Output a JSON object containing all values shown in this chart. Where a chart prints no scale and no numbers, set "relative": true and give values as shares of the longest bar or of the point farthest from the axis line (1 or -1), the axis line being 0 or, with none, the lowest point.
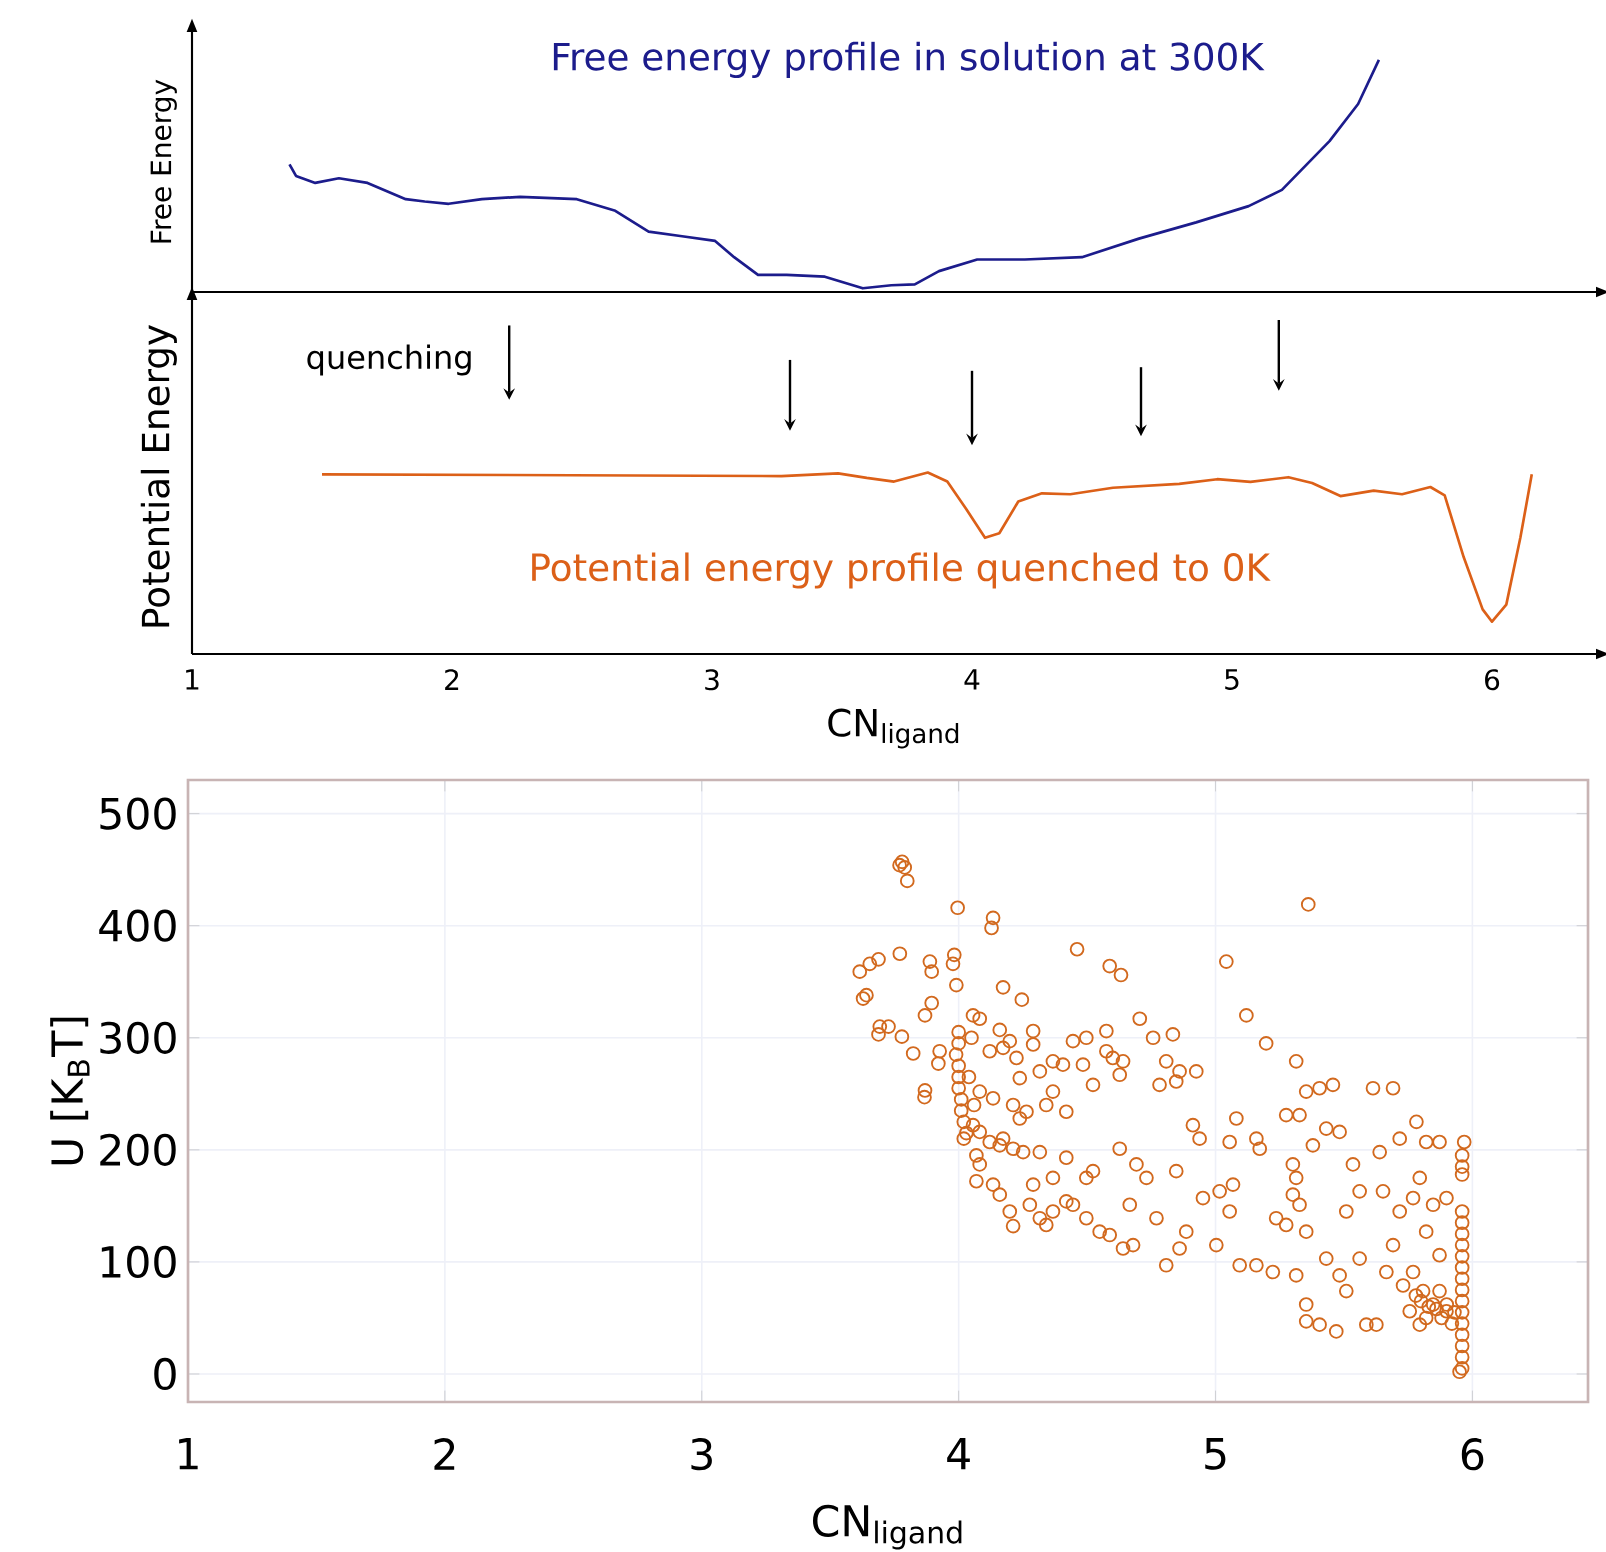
{
  "chart_data": [
    {
      "type": "line",
      "relative": true,
      "ylabel": "Free Energy",
      "xlim": [
        1,
        6.4
      ],
      "tick_labels": false,
      "series": [
        {
          "name": "Free energy profile in solution at 300K",
          "color": "#1c1c8c",
          "x": [
            1.375,
            1.4,
            1.474,
            1.565,
            1.675,
            1.822,
            1.895,
            1.987,
            2.115,
            2.262,
            2.48,
            2.628,
            2.756,
            2.885,
            3.012,
            3.085,
            3.177,
            3.287,
            3.434,
            3.58,
            3.69,
            3.78,
            3.873,
            4.02,
            4.203,
            4.423,
            4.642,
            4.862,
            5.064,
            5.192,
            5.375,
            5.485,
            5.565
          ],
          "values": [
            0.55,
            0.5,
            0.47,
            0.49,
            0.47,
            0.4,
            0.39,
            0.38,
            0.4,
            0.41,
            0.4,
            0.35,
            0.26,
            0.24,
            0.22,
            0.15,
            0.074,
            0.074,
            0.066,
            0.016,
            0.029,
            0.033,
            0.09,
            0.14,
            0.14,
            0.15,
            0.23,
            0.3,
            0.37,
            0.44,
            0.65,
            0.81,
            1.0
          ]
        }
      ]
    },
    {
      "type": "line",
      "relative": true,
      "ylabel": "Potential Energy",
      "xlabel": "CN$_{ligand}$",
      "xlim": [
        1,
        6.4
      ],
      "xticks": [
        1,
        2,
        3,
        4,
        5,
        6
      ],
      "tick_labels": "x",
      "annotations": [
        "quenching"
      ],
      "series": [
        {
          "name": "Potential energy profile quenched to 0K",
          "color": "#dc6018",
          "x": [
            1.5,
            3.267,
            3.485,
            3.595,
            3.7,
            3.83,
            3.905,
            3.977,
            4.05,
            4.105,
            4.178,
            4.269,
            4.378,
            4.542,
            4.797,
            4.943,
            5.071,
            5.217,
            5.308,
            5.417,
            5.545,
            5.654,
            5.763,
            5.818,
            5.891,
            5.964,
            6.0,
            6.055,
            6.109,
            6.153
          ],
          "values": [
            0.99,
            0.98,
            0.995,
            0.97,
            0.95,
            1.0,
            0.95,
            0.8,
            0.64,
            0.665,
            0.84,
            0.885,
            0.88,
            0.916,
            0.937,
            0.963,
            0.948,
            0.974,
            0.942,
            0.87,
            0.9,
            0.88,
            0.92,
            0.874,
            0.534,
            0.246,
            0.178,
            0.272,
            0.64,
            0.99
          ]
        }
      ]
    },
    {
      "type": "scatter",
      "xlabel": "CN$_{ligand}$",
      "ylabel": "U [K$_{B}$T]",
      "xlim": [
        1,
        6.45
      ],
      "ylim": [
        -25,
        530
      ],
      "xticks": [
        1,
        2,
        3,
        4,
        5,
        6
      ],
      "yticks": [
        0,
        100,
        200,
        300,
        400,
        500
      ],
      "grid": true,
      "marker": "circle",
      "series": [
        {
          "color": "#d2691e",
          "x": [
            3.77,
            3.78,
            3.79,
            3.8,
            3.996,
            4.134,
            4.128,
            4.461,
            4.588,
            4.632,
            5.042,
            5.361,
            3.615,
            3.654,
            3.688,
            3.641,
            3.628,
            3.771,
            3.888,
            3.895,
            3.983,
            3.978,
            3.991,
            4.173,
            4.246,
            3.895,
            3.869,
            3.693,
            3.727,
            3.688,
            3.779,
            3.823,
            3.869,
            3.867,
            3.926,
            3.921,
            4.0,
            4.0,
            3.99,
            4.0,
            4.0,
            4.0,
            4.01,
            4.01,
            4.02,
            4.03,
            4.02,
            4.05,
            4.04,
            4.06,
            4.056,
            4.082,
            4.16,
            4.199,
            4.29,
            4.29,
            4.121,
            4.173,
            4.225,
            4.238,
            4.316,
            4.367,
            4.406,
            4.445,
            4.497,
            4.575,
            4.575,
            4.6,
            4.64,
            4.705,
            4.757,
            4.834,
            4.808,
            4.86,
            4.925,
            4.782,
            4.847,
            4.627,
            4.523,
            4.484,
            4.367,
            4.341,
            4.419,
            4.082,
            4.134,
            4.212,
            4.264,
            4.056,
            4.082,
            4.121,
            4.16,
            4.212,
            4.251,
            4.173,
            4.238,
            4.316,
            4.069,
            4.082,
            4.069,
            4.134,
            4.16,
            4.199,
            4.212,
            4.277,
            4.29,
            4.316,
            4.341,
            4.367,
            4.419,
            4.445,
            4.367,
            4.419,
            4.497,
            4.523,
            4.497,
            4.549,
            4.588,
            4.64,
            4.679,
            4.666,
            4.692,
            4.627,
            4.731,
            4.77,
            4.808,
            4.86,
            4.886,
            4.847,
            4.912,
            4.938,
            4.951,
            5.016,
            5.055,
            5.068,
            5.003,
            5.094,
            5.159,
            5.223,
            5.081,
            5.055,
            5.159,
            5.172,
            5.12,
            5.197,
            5.236,
            5.275,
            5.301,
            5.314,
            5.353,
            5.405,
            5.457,
            5.275,
            5.327,
            5.379,
            5.431,
            5.301,
            5.314,
            5.327,
            5.353,
            5.314,
            5.353,
            5.405,
            5.47,
            5.353,
            5.431,
            5.483,
            5.509,
            5.561,
            5.483,
            5.535,
            5.561,
            5.509,
            5.587,
            5.626,
            5.613,
            5.691,
            5.639,
            5.717,
            5.652,
            5.717,
            5.769,
            5.691,
            5.665,
            5.73,
            5.756,
            5.782,
            5.82,
            5.872,
            5.795,
            5.847,
            5.899,
            5.82,
            5.872,
            5.769,
            5.808,
            5.847,
            5.82,
            5.795,
            5.899,
            5.872,
            5.968,
            5.96,
            5.96,
            5.96,
            5.96,
            5.96,
            5.96,
            5.96,
            5.96,
            5.96,
            5.96,
            5.96,
            5.96,
            5.96,
            5.96,
            5.96,
            5.96,
            5.96,
            5.96,
            5.95,
            5.78,
            5.8,
            5.83,
            5.86,
            5.9,
            5.93,
            5.88,
            5.92
          ],
          "values": [
            454,
            457,
            452,
            440,
            416,
            407,
            398,
            379,
            364,
            356,
            368,
            419,
            359,
            366,
            370,
            338,
            335,
            375,
            368,
            359,
            374,
            366,
            347,
            345,
            334,
            331,
            320,
            310,
            310,
            303,
            301,
            286,
            253,
            247,
            288,
            277,
            305,
            295,
            285,
            275,
            265,
            255,
            245,
            235,
            225,
            215,
            210,
            300,
            265,
            240,
            320,
            317,
            307,
            297,
            306,
            294,
            288,
            291,
            282,
            264,
            270,
            279,
            276,
            297,
            300,
            306,
            288,
            282,
            279,
            317,
            300,
            303,
            279,
            270,
            270,
            258,
            261,
            267,
            258,
            276,
            252,
            240,
            234,
            252,
            246,
            240,
            234,
            222,
            216,
            207,
            204,
            201,
            198,
            210,
            228,
            198,
            195,
            187,
            172,
            169,
            160,
            145,
            132,
            151,
            169,
            139,
            133,
            145,
            154,
            151,
            175,
            193,
            175,
            181,
            139,
            127,
            124,
            112,
            115,
            151,
            187,
            201,
            175,
            139,
            97,
            112,
            127,
            181,
            222,
            210,
            157,
            163,
            145,
            169,
            115,
            97,
            97,
            91,
            228,
            207,
            210,
            201,
            320,
            295,
            139,
            133,
            160,
            279,
            252,
            255,
            258,
            231,
            231,
            204,
            219,
            187,
            175,
            151,
            127,
            88,
            62,
            44,
            38,
            47,
            103,
            88,
            74,
            103,
            216,
            187,
            163,
            145,
            44,
            44,
            255,
            255,
            198,
            210,
            163,
            145,
            157,
            115,
            91,
            79,
            56,
            225,
            207,
            207,
            175,
            151,
            157,
            127,
            106,
            91,
            74,
            62,
            50,
            44,
            56,
            74,
            207,
            195,
            185,
            178,
            145,
            135,
            125,
            115,
            105,
            95,
            85,
            75,
            65,
            55,
            45,
            35,
            25,
            15,
            5,
            2,
            70,
            65,
            60,
            58,
            62,
            55,
            50,
            45
          ]
        }
      ]
    }
  ]
}
